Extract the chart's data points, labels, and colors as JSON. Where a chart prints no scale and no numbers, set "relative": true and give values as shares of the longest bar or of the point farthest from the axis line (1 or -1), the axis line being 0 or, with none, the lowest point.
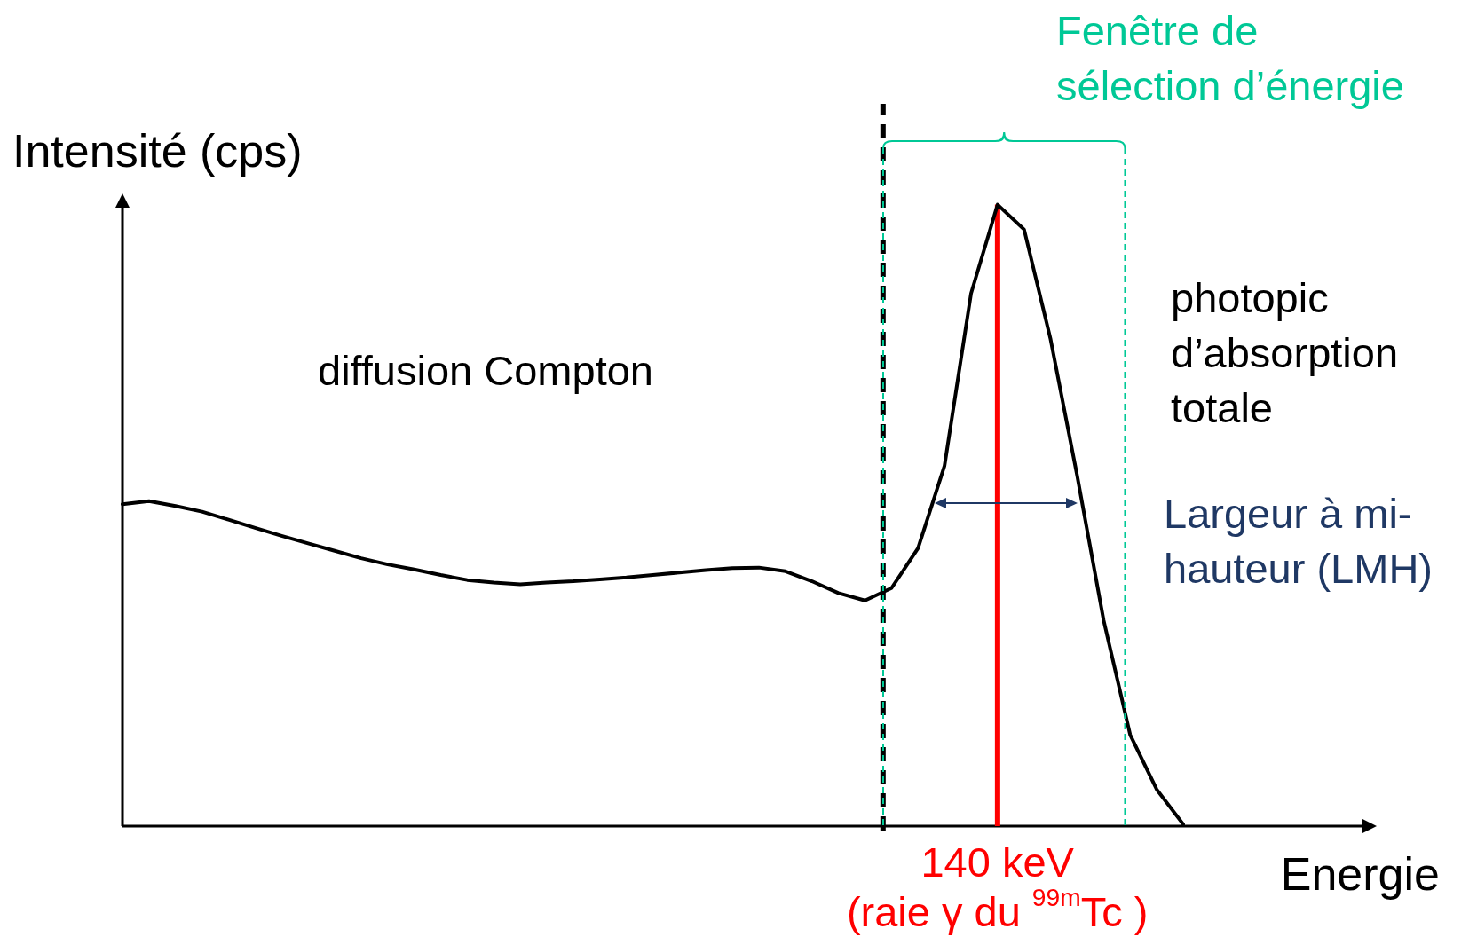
{
  "chart_data": {
    "type": "line",
    "relative": true,
    "xlabel": "Energie",
    "ylabel": "Intensité (cps)",
    "color": "#000000",
    "line_style": "solid",
    "marker": "none",
    "categories": [
      null,
      null,
      null,
      null,
      null,
      null,
      null,
      null,
      null,
      null,
      null,
      null,
      null,
      null,
      null,
      null,
      null,
      null,
      null,
      null,
      null,
      null,
      null,
      null,
      null,
      null,
      null,
      null,
      null,
      null,
      null,
      null,
      null,
      null,
      null,
      null,
      null,
      null,
      null,
      null,
      null
    ],
    "values": [
      0.518,
      0.523,
      0.515,
      0.506,
      0.493,
      0.48,
      0.467,
      0.455,
      0.443,
      0.431,
      0.421,
      0.413,
      0.404,
      0.396,
      0.392,
      0.389,
      0.392,
      0.394,
      0.397,
      0.4,
      0.404,
      0.408,
      0.412,
      0.415,
      0.416,
      0.41,
      0.394,
      0.375,
      0.363,
      0.383,
      0.447,
      0.58,
      0.857,
      1,
      0.96,
      0.783,
      0.564,
      0.331,
      0.147,
      0.059,
      0.003
    ],
    "ref_lines": [
      {
        "axis": "x",
        "color": "#000000",
        "line_style": "dashed"
      },
      {
        "axis": "x",
        "label": "140 keV\n(raie γ du $^{99m}$Tc )",
        "color": "#ff0000",
        "line_style": "solid"
      }
    ],
    "annotations": [
      "diffusion Compton",
      "photopic\nd’absorption\ntotale",
      "Largeur à mi-\nhauteur (LMH)",
      "Fenêtre de\nsélection d’énergie"
    ]
  }
}
